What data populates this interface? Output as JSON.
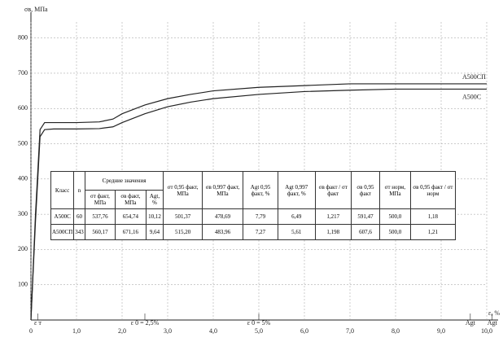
{
  "chart_data": {
    "type": "line",
    "y_label": "σв, МПа",
    "x_label": "ε, %",
    "x": [
      0,
      0.1,
      0.2,
      0.3,
      0.5,
      1.0,
      1.5,
      1.8,
      2.0,
      2.5,
      3.0,
      3.5,
      4.0,
      5.0,
      6.0,
      7.0,
      8.0,
      9.0,
      10.0
    ],
    "series": [
      {
        "name": "A500СП",
        "color": "#222222",
        "values": [
          0,
          300,
          540,
          560,
          560,
          560,
          562,
          570,
          585,
          610,
          628,
          640,
          650,
          660,
          665,
          670,
          670,
          670,
          670
        ]
      },
      {
        "name": "A500C",
        "color": "#222222",
        "values": [
          0,
          280,
          520,
          540,
          542,
          542,
          543,
          548,
          560,
          585,
          605,
          618,
          628,
          640,
          648,
          652,
          655,
          655,
          655
        ]
      }
    ],
    "xlim": [
      0,
      10
    ],
    "ylim": [
      0,
      850
    ],
    "xticks": [
      0,
      {
        "value": 1,
        "label": "1,0"
      },
      {
        "value": 2,
        "label": "2,0"
      },
      {
        "value": 3,
        "label": "3,0"
      },
      {
        "value": 4,
        "label": "4,0"
      },
      {
        "value": 5,
        "label": "5,0"
      },
      {
        "value": 6,
        "label": "6,0"
      },
      {
        "value": 7,
        "label": "7,0"
      },
      {
        "value": 8,
        "label": "8,0"
      },
      {
        "value": 9,
        "label": "9,0"
      },
      {
        "value": 10,
        "label": "10,0"
      }
    ],
    "yticks": [
      100,
      200,
      300,
      400,
      500,
      600,
      700,
      800
    ],
    "grid": true,
    "annotations": [
      {
        "text": "ε т",
        "x": 0.15
      },
      {
        "text": "ε 0 = 2,5%",
        "x": 2.5
      },
      {
        "text": "ε 0 = 5%",
        "x": 5
      },
      {
        "text": "Agt",
        "x": 9.64
      },
      {
        "text": "Agt",
        "x": 10.12
      }
    ]
  },
  "table": {
    "header": {
      "class": "Класс",
      "n": "n",
      "group": "Средние значения",
      "sub": [
        "σт факт, МПа",
        "σв факт, МПа",
        "Agt, %"
      ],
      "cols": [
        "σт 0,95 факт, МПа",
        "σв 0,997 факт, МПа",
        "Agt 0,95 факт, %",
        "Agt 0,997 факт, %",
        "σв факт / σт факт",
        "σв 0,95 факт",
        "σт норм, МПа",
        "σв 0,95 факт / σт норм"
      ]
    },
    "rows": [
      [
        "A500C",
        "60",
        "537,76",
        "654,74",
        "10,12",
        "501,37",
        "478,69",
        "7,79",
        "6,49",
        "1,217",
        "591,47",
        "500,0",
        "1,18"
      ],
      [
        "A500СП",
        "343",
        "560,17",
        "671,16",
        "9,64",
        "515,20",
        "483,96",
        "7,27",
        "5,61",
        "1,198",
        "607,6",
        "500,0",
        "1,21"
      ]
    ]
  }
}
